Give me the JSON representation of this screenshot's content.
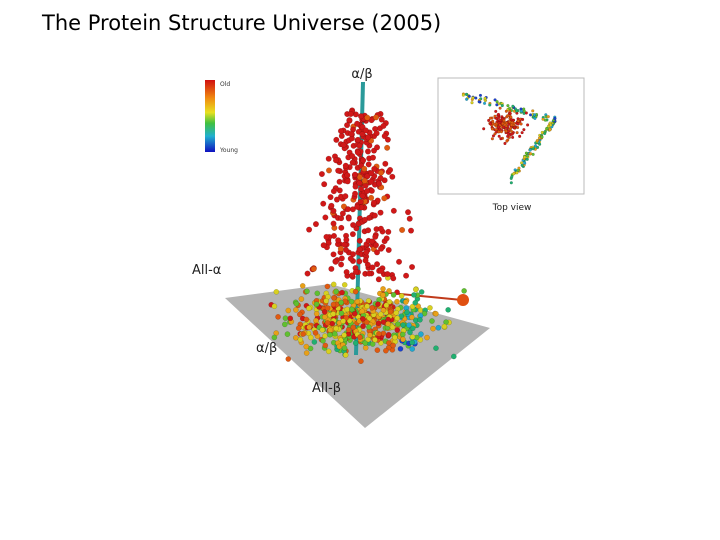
{
  "slide": {
    "title": "The Protein Structure Universe (2005)",
    "axis_labels": {
      "top": "α/β",
      "left": "All-α",
      "front": "α/β",
      "bottom": "All-β"
    },
    "colorbar": {
      "top": "Old",
      "bottom": "Young"
    },
    "inset": {
      "caption": "Top view"
    }
  }
}
